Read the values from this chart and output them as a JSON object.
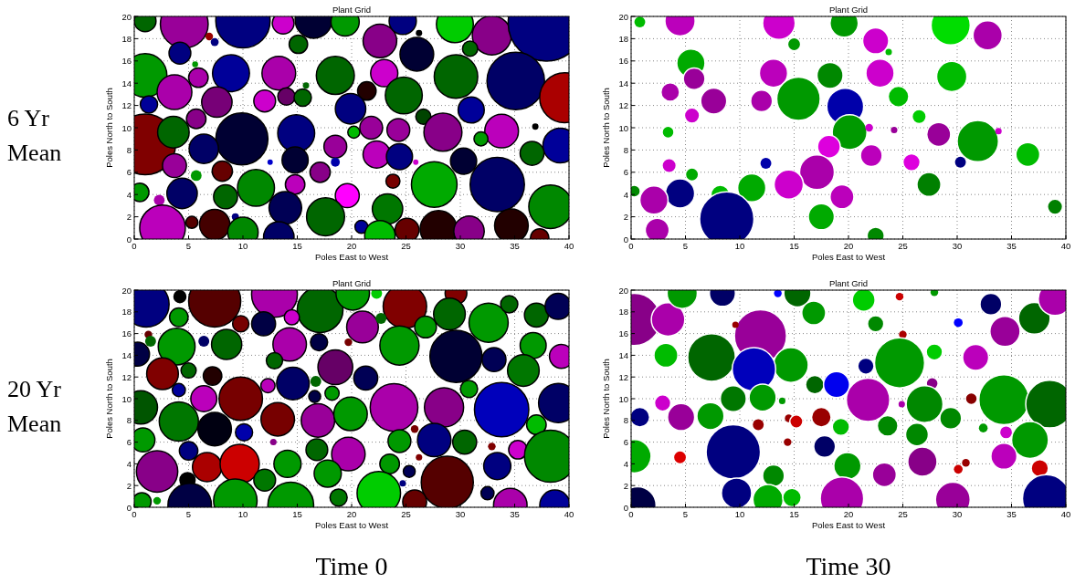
{
  "chart_data": [
    {
      "type": "bubble",
      "title": "Plant Grid",
      "xlabel": "Poles East to West",
      "ylabel": "Poles North to South",
      "xlim": [
        0,
        40
      ],
      "ylim": [
        0,
        20
      ],
      "xticks": [
        0,
        5,
        10,
        15,
        20,
        25,
        30,
        35,
        40
      ],
      "yticks": [
        0,
        2,
        4,
        6,
        8,
        10,
        12,
        14,
        16,
        18,
        20
      ],
      "grid": true,
      "annotations": [
        "6 Yr Mean"
      ],
      "x": [
        1.0,
        4.6,
        10,
        13.7,
        16.5,
        19.4,
        22.6,
        24.7,
        26,
        29.5,
        32.9,
        37.9,
        6.9,
        7.4,
        4.2,
        15.1,
        30.9,
        1.0,
        5.6,
        5.9,
        8.9,
        13.3,
        18.5,
        23,
        29.6,
        35.1,
        39.6,
        3.7,
        7.6,
        1.35,
        12,
        14,
        15.5,
        15.8,
        21.4,
        24.8,
        19.9,
        31,
        5.7,
        26.6,
        1.0,
        3.6,
        9.9,
        14.9,
        20.2,
        21.8,
        24.3,
        28.4,
        33.8,
        39.2,
        31.9,
        36.9,
        6.4,
        3.7,
        18.5,
        22.3,
        24.4,
        14.8,
        30.3,
        36.6,
        12.5,
        18.5,
        25.9,
        17.1,
        8.1,
        5.7,
        14.8,
        23.8,
        27.6,
        33.4,
        38.3,
        0.5,
        4.4,
        8.4,
        11.2,
        2.3,
        19.6,
        13.9,
        17.6,
        23.3,
        2.6,
        5.3,
        7.4,
        9.3,
        10,
        13.3,
        20.9,
        22.6,
        25.1,
        28.0,
        30.8,
        34.7,
        37.3,
        26.2
      ],
      "values": [
        19.6,
        19.3,
        19.6,
        19.4,
        19.7,
        19.5,
        17.8,
        19.6,
        16.6,
        19.3,
        18.3,
        19.4,
        18.2,
        17.7,
        16.7,
        17.5,
        17.1,
        14.7,
        15.7,
        14.5,
        14.9,
        14.9,
        14.7,
        14.9,
        14.6,
        14.2,
        12.7,
        13.2,
        12.3,
        12.1,
        12.4,
        12.8,
        12.7,
        13.8,
        13.3,
        12.9,
        11.7,
        11.6,
        10.8,
        11.0,
        8.5,
        9.6,
        9.0,
        9.5,
        9.6,
        10.0,
        9.8,
        9.6,
        9.7,
        8.4,
        9.0,
        10.1,
        8.1,
        6.6,
        8.3,
        7.6,
        7.4,
        7.1,
        7.0,
        7.7,
        6.9,
        6.9,
        6.9,
        6.0,
        6.1,
        5.7,
        4.9,
        5.2,
        4.9,
        4.9,
        2.9,
        4.2,
        4.1,
        3.8,
        4.6,
        3.5,
        3.9,
        2.8,
        2.0,
        2.7,
        1.0,
        1.5,
        1.3,
        2.0,
        0.6,
        0.2,
        1.1,
        0.3,
        0.8,
        0.9,
        0.7,
        1.2,
        0.1,
        18.5
      ],
      "sizes": [
        0.082,
        0.395,
        0.51,
        0.082,
        0.236,
        0.138,
        0.196,
        0.128,
        0.196,
        0.236,
        0.264,
        1,
        0.01,
        0.011,
        0.082,
        0.059,
        0.04,
        0.327,
        0.006,
        0.066,
        0.236,
        0.196,
        0.25,
        0.128,
        0.327,
        0.573,
        0.432,
        0.209,
        0.16,
        0.052,
        0.082,
        0.052,
        0.052,
        0.007,
        0.059,
        0.236,
        0.16,
        0.118,
        0.066,
        0.04,
        0.64,
        0.172,
        0.47,
        0.236,
        0.025,
        0.09,
        0.09,
        0.25,
        0.196,
        0.209,
        0.034,
        0.007,
        0.149,
        0.099,
        0.09,
        0.128,
        0.118,
        0.118,
        0.118,
        0.099,
        0.005,
        0.014,
        0.005,
        0.071,
        0.071,
        0.02,
        0.066,
        0.034,
        0.36,
        0.51,
        0.327,
        0.059,
        0.16,
        0.099,
        0.236,
        0.02,
        0.099,
        0.184,
        0.25,
        0.16,
        0.36,
        0.025,
        0.16,
        0.009,
        0.16,
        0.16,
        0.029,
        0.16,
        0.099,
        0.236,
        0.16,
        0.196,
        0.059,
        0.007
      ],
      "colors": [
        "#006600",
        "#990099",
        "#000080",
        "#cc00cc",
        "#000033",
        "#009900",
        "#880088",
        "#000080",
        "#000033",
        "#00cc00",
        "#880088",
        "#000080",
        "#990000",
        "#000080",
        "#000080",
        "#006600",
        "#006600",
        "#009900",
        "#009900",
        "#aa00aa",
        "#000099",
        "#aa00aa",
        "#006600",
        "#cc00cc",
        "#006600",
        "#000066",
        "#aa0000",
        "#aa00aa",
        "#770077",
        "#000099",
        "#cc00cc",
        "#660066",
        "#006600",
        "#006600",
        "#220000",
        "#006600",
        "#000080",
        "#000099",
        "#880088",
        "#004400",
        "#800000",
        "#006600",
        "#000033",
        "#000080",
        "#00bb00",
        "#990099",
        "#990099",
        "#880088",
        "#bb00bb",
        "#000099",
        "#009900",
        "#000000",
        "#000066",
        "#990099",
        "#990099",
        "#bb00bb",
        "#000080",
        "#000033",
        "#000033",
        "#006600",
        "#0000cc",
        "#0000aa",
        "#cc00cc",
        "#880088",
        "#660000",
        "#009900",
        "#bb00bb",
        "#770000",
        "#00aa00",
        "#000066",
        "#008800",
        "#009900",
        "#000066",
        "#006600",
        "#008800",
        "#aa00aa",
        "#ff00ff",
        "#000055",
        "#006600",
        "#007700",
        "#bb00bb",
        "#550000",
        "#440000",
        "#000080",
        "#008800",
        "#000066",
        "#000099",
        "#00bb00",
        "#660000",
        "#220000",
        "#880088",
        "#220000",
        "#660000",
        "#000000"
      ]
    },
    {
      "type": "bubble",
      "title": "Plant Grid",
      "xlabel": "Poles East to West",
      "ylabel": "Poles North to South",
      "xlim": [
        0,
        40
      ],
      "ylim": [
        0,
        20
      ],
      "xticks": [
        0,
        5,
        10,
        15,
        20,
        25,
        30,
        35,
        40
      ],
      "yticks": [
        0,
        2,
        4,
        6,
        8,
        10,
        12,
        14,
        16,
        18,
        20
      ],
      "grid": true,
      "x": [
        0.8,
        4.5,
        13.6,
        19.6,
        15,
        22.5,
        23.7,
        29.4,
        32.8,
        5.5,
        5.8,
        13.1,
        18.3,
        22.9,
        29.5,
        3.6,
        7.6,
        12,
        15.4,
        19.7,
        24.6,
        5.6,
        26.5,
        3.4,
        20.1,
        21.9,
        24.2,
        28.3,
        31.9,
        33.8,
        36.5,
        18.2,
        22.1,
        25.8,
        30.3,
        12.4,
        3.5,
        5.6,
        17.1,
        14.5,
        27.4,
        0.3,
        4.5,
        2.1,
        8.2,
        11.1,
        8.8,
        19.4,
        17.5,
        39,
        2.4,
        22.5
      ],
      "values": [
        19.5,
        19.6,
        19.4,
        19.4,
        17.5,
        17.8,
        16.8,
        19.2,
        18.3,
        15.8,
        14.4,
        14.9,
        14.7,
        14.9,
        14.6,
        13.2,
        12.4,
        12.4,
        12.6,
        11.9,
        12.8,
        11.1,
        11.0,
        9.6,
        9.6,
        10.0,
        9.8,
        9.4,
        8.8,
        9.7,
        7.6,
        8.3,
        7.5,
        6.9,
        6.9,
        6.8,
        6.6,
        5.8,
        6.0,
        4.9,
        4.9,
        4.3,
        4.1,
        3.5,
        4.0,
        4.6,
        1.8,
        3.8,
        2.0,
        2.9,
        0.8,
        0.3
      ],
      "sizes": [
        0.04,
        0.31,
        0.36,
        0.27,
        0.058,
        0.23,
        0.014,
        0.52,
        0.29,
        0.27,
        0.16,
        0.27,
        0.23,
        0.27,
        0.31,
        0.116,
        0.23,
        0.16,
        0.64,
        0.46,
        0.144,
        0.078,
        0.068,
        0.048,
        0.41,
        0.02,
        0.014,
        0.194,
        0.58,
        0.014,
        0.194,
        0.176,
        0.16,
        0.1,
        0.04,
        0.04,
        0.068,
        0.058,
        0.41,
        0.29,
        0.194,
        0.048,
        0.29,
        0.27,
        0.116,
        0.27,
        1,
        0.194,
        0.23,
        0.078,
        0.194,
        0.1
      ],
      "colors": [
        "#00bb00",
        "#bb00bb",
        "#cc00cc",
        "#009900",
        "#009900",
        "#cc00cc",
        "#00bb00",
        "#00dd00",
        "#aa00aa",
        "#00aa00",
        "#990099",
        "#bb00bb",
        "#008800",
        "#cc00cc",
        "#00bb00",
        "#aa00aa",
        "#990099",
        "#aa00aa",
        "#009900",
        "#0000aa",
        "#00bb00",
        "#cc00cc",
        "#00cc00",
        "#00bb00",
        "#009900",
        "#cc00cc",
        "#990099",
        "#990099",
        "#009900",
        "#cc00cc",
        "#00bb00",
        "#dd00dd",
        "#bb00bb",
        "#dd00dd",
        "#000080",
        "#0000aa",
        "#cc00cc",
        "#00aa00",
        "#aa00aa",
        "#cc00cc",
        "#008000",
        "#008800",
        "#000080",
        "#aa00aa",
        "#00bb00",
        "#00aa00",
        "#000080",
        "#bb00bb",
        "#00aa00",
        "#008000",
        "#aa00aa",
        "#008800"
      ]
    },
    {
      "type": "bubble",
      "title": "Plant Grid",
      "xlabel": "Poles East to West",
      "ylabel": "Poles North to South",
      "xlim": [
        0,
        40
      ],
      "ylim": [
        0,
        20
      ],
      "xticks": [
        0,
        5,
        10,
        15,
        20,
        25,
        30,
        35,
        40
      ],
      "yticks": [
        0,
        2,
        4,
        6,
        8,
        10,
        12,
        14,
        16,
        18,
        20
      ],
      "grid": true,
      "annotations": [
        "20 Yr Mean",
        "Time 0"
      ],
      "x": [
        1.1,
        4.2,
        7.4,
        12.9,
        17.1,
        20.1,
        22.3,
        24.9,
        29.6,
        29,
        32.6,
        34.5,
        37.0,
        39.0,
        4.1,
        9.8,
        11.9,
        14.5,
        21.0,
        22.7,
        26.8,
        1.3,
        1.5,
        3.9,
        6.4,
        8.5,
        14.3,
        17.0,
        19.7,
        24.4,
        29.6,
        33.1,
        36.7,
        39.3,
        0.3,
        2.6,
        5.0,
        7.2,
        12.9,
        18.5,
        35.8,
        14.6,
        21.3,
        16.7,
        12.3,
        4.1,
        30.8,
        6.4,
        9.8,
        0.6,
        16.6,
        18.2,
        23.9,
        28.5,
        33.8,
        39.0,
        4.1,
        7.4,
        10.1,
        13.2,
        16.9,
        19.9,
        25.8,
        37.0,
        0.8,
        24.4,
        27.6,
        30.4,
        12.8,
        5.0,
        16.8,
        19.7,
        26.2,
        32.9,
        35.3,
        38.3,
        2.1,
        6.7,
        9.7,
        4.9,
        14.1,
        17.8,
        23.5,
        25.3,
        12.0,
        28.8,
        33.4,
        22.5,
        32.5,
        0.7,
        2.1,
        5.1,
        9.3,
        14.4,
        18.8,
        25.8,
        34.6,
        38.7,
        24.7
      ],
      "values": [
        18.7,
        19.4,
        19.0,
        19.6,
        18.2,
        19.7,
        19.7,
        18.5,
        19.7,
        17.8,
        17.0,
        18.7,
        17.7,
        18.5,
        17.5,
        16.9,
        16.9,
        17.5,
        16.6,
        17.4,
        16.6,
        15.9,
        15.3,
        14.8,
        15.3,
        15.0,
        15.0,
        15.2,
        15.2,
        14.9,
        13.9,
        13.6,
        14.9,
        13.9,
        14.1,
        12.3,
        12.6,
        12.1,
        13.5,
        12.9,
        12.6,
        11.4,
        11.9,
        11.6,
        11.2,
        10.8,
        10.9,
        10.0,
        10.0,
        9.2,
        10.2,
        10.5,
        9.2,
        9.2,
        9.0,
        9.6,
        7.9,
        7.2,
        6.9,
        8.1,
        8.0,
        8.6,
        7.2,
        7.6,
        6.2,
        6.1,
        6.2,
        6.0,
        6.0,
        5.2,
        5.3,
        4.9,
        4.6,
        5.6,
        5.3,
        4.7,
        3.3,
        3.7,
        4.0,
        2.5,
        4.0,
        3.1,
        4.0,
        3.3,
        2.5,
        2.3,
        3.8,
        1.3,
        1.3,
        0.5,
        0.6,
        0.2,
        0.6,
        0.2,
        0.9,
        0.5,
        0.2,
        0.2,
        2.2
      ],
      "sizes": [
        0.71,
        0.048,
        0.92,
        0.71,
        0.71,
        0.38,
        0.04,
        0.64,
        0.16,
        0.34,
        0.52,
        0.1,
        0.194,
        0.23,
        0.116,
        0.09,
        0.194,
        0.078,
        0.34,
        0.04,
        0.16,
        0.02,
        0.04,
        0.46,
        0.04,
        0.31,
        0.38,
        0.1,
        0.02,
        0.52,
        0.92,
        0.194,
        0.23,
        0.194,
        0.194,
        0.34,
        0.078,
        0.116,
        0.09,
        0.41,
        0.34,
        0.36,
        0.194,
        0.04,
        0.068,
        0.058,
        0.1,
        0.23,
        0.64,
        0.38,
        0.048,
        0.068,
        0.77,
        0.52,
        1,
        0.52,
        0.52,
        0.38,
        0.1,
        0.38,
        0.38,
        0.38,
        0.02,
        0.13,
        0.194,
        0.176,
        0.38,
        0.194,
        0.014,
        0.116,
        0.16,
        0.38,
        0.014,
        0.02,
        0.116,
        0.92,
        0.58,
        0.29,
        0.52,
        0.078,
        0.25,
        0.25,
        0.13,
        0.048,
        0.16,
        0.92,
        0.25,
        0.64,
        0.058,
        0.116,
        0.02,
        0.64,
        0.64,
        0.71,
        0.1,
        0.194,
        0.38,
        0.31,
        0.014
      ],
      "colors": [
        "#000080",
        "#000000",
        "#550000",
        "#aa00aa",
        "#006600",
        "#009900",
        "#00cc00",
        "#800000",
        "#800000",
        "#006600",
        "#009900",
        "#006600",
        "#006600",
        "#000055",
        "#009900",
        "#770000",
        "#000044",
        "#cc00cc",
        "#990099",
        "#006600",
        "#009900",
        "#660000",
        "#006600",
        "#009900",
        "#000066",
        "#006600",
        "#aa00aa",
        "#000044",
        "#770000",
        "#009900",
        "#000033",
        "#000055",
        "#009900",
        "#bb00bb",
        "#000044",
        "#800000",
        "#006600",
        "#220000",
        "#006600",
        "#660066",
        "#007700",
        "#000066",
        "#000055",
        "#006600",
        "#bb00bb",
        "#000099",
        "#009900",
        "#bb00bb",
        "#770000",
        "#005500",
        "#000044",
        "#009900",
        "#aa00aa",
        "#880088",
        "#0000bb",
        "#000066",
        "#007700",
        "#000011",
        "#0000aa",
        "#770000",
        "#990099",
        "#009900",
        "#770000",
        "#00bb00",
        "#009900",
        "#009900",
        "#000080",
        "#006600",
        "#880088",
        "#000080",
        "#006600",
        "#aa00aa",
        "#800000",
        "#800000",
        "#cc00cc",
        "#008800",
        "#880088",
        "#aa0000",
        "#cc0000",
        "#000000",
        "#009900",
        "#009900",
        "#009900",
        "#000055",
        "#007700",
        "#550000",
        "#000080",
        "#00cc00",
        "#000055",
        "#009900",
        "#009900",
        "#000044",
        "#009900",
        "#009900",
        "#007700",
        "#660000",
        "#aa00aa",
        "#000099",
        "#000080"
      ]
    },
    {
      "type": "bubble",
      "title": "Plant Grid",
      "xlabel": "Poles East to West",
      "ylabel": "Poles North to South",
      "xlim": [
        0,
        40
      ],
      "ylim": [
        0,
        20
      ],
      "xticks": [
        0,
        5,
        10,
        15,
        20,
        25,
        30,
        35,
        40
      ],
      "yticks": [
        0,
        2,
        4,
        6,
        8,
        10,
        12,
        14,
        16,
        18,
        20
      ],
      "grid": true,
      "annotations": [
        "Time 30"
      ],
      "x": [
        0.3,
        3.4,
        4.7,
        8.4,
        13.5,
        15.3,
        16.8,
        11.9,
        9.6,
        21.4,
        24.7,
        27.9,
        33.1,
        37.1,
        39.0,
        22.5,
        30.1,
        34.4,
        25.0,
        7.4,
        3.2,
        14.7,
        11.3,
        21.6,
        24.7,
        27.9,
        31.7,
        16.9,
        18.9,
        21.8,
        27.7,
        34.3,
        38.5,
        9.4,
        12.1,
        2.9,
        13.9,
        31.3,
        0.8,
        4.6,
        7.3,
        11.7,
        14.5,
        15.2,
        17.5,
        19.3,
        23.6,
        27.0,
        26.3,
        29.4,
        24.9,
        32.4,
        34.5,
        36.7,
        0.3,
        9.4,
        17.8,
        14.4,
        4.5,
        26.8,
        34.3,
        19.9,
        23.3,
        30.1,
        30.8,
        37.6,
        13.1,
        9.7,
        12.6,
        14.8,
        19.4,
        29.6,
        38.2,
        0.6
      ],
      "values": [
        17.3,
        17.3,
        19.7,
        19.7,
        19.7,
        19.7,
        17.9,
        15.8,
        16.8,
        19.1,
        19.4,
        19.8,
        18.7,
        17.4,
        19.2,
        16.9,
        17.0,
        16.2,
        15.9,
        13.8,
        14.0,
        13.1,
        12.7,
        13.0,
        13.3,
        14.3,
        13.8,
        11.3,
        11.3,
        9.9,
        11.4,
        9.9,
        9.5,
        10.0,
        10.1,
        9.6,
        9.8,
        10.0,
        8.3,
        8.3,
        8.4,
        7.6,
        8.2,
        7.9,
        8.3,
        7.4,
        7.5,
        9.5,
        6.7,
        8.2,
        9.5,
        7.3,
        6.9,
        6.2,
        4.7,
        5.1,
        5.6,
        6.0,
        4.6,
        4.2,
        4.7,
        3.8,
        3.0,
        3.5,
        4.1,
        3.6,
        2.9,
        1.3,
        0.7,
        0.9,
        0.8,
        0.7,
        0.8,
        0.2
      ],
      "sizes": [
        0.92,
        0.38,
        0.31,
        0.23,
        0.02,
        0.25,
        0.194,
        0.92,
        0.014,
        0.176,
        0.02,
        0.02,
        0.16,
        0.34,
        0.38,
        0.09,
        0.026,
        0.31,
        0.02,
        0.77,
        0.194,
        0.41,
        0.64,
        0.09,
        0.85,
        0.09,
        0.23,
        0.116,
        0.23,
        0.64,
        0.048,
        0.85,
        0.77,
        0.23,
        0.25,
        0.09,
        0.014,
        0.048,
        0.13,
        0.25,
        0.25,
        0.04,
        0.02,
        0.058,
        0.13,
        0.1,
        0.144,
        0.46,
        0.176,
        0.16,
        0.014,
        0.026,
        0.058,
        0.46,
        0.38,
        1,
        0.16,
        0.02,
        0.058,
        0.29,
        0.23,
        0.25,
        0.194,
        0.026,
        0.02,
        0.1,
        0.16,
        0.31,
        0.31,
        0.116,
        0.64,
        0.41,
        0.77,
        0.46
      ],
      "colors": [
        "#880088",
        "#aa00aa",
        "#009900",
        "#000066",
        "#0000ff",
        "#006600",
        "#009900",
        "#990099",
        "#990000",
        "#00cc00",
        "#cc0000",
        "#009900",
        "#000066",
        "#006600",
        "#aa00aa",
        "#008800",
        "#0000ff",
        "#990099",
        "#aa0000",
        "#006600",
        "#00bb00",
        "#009900",
        "#0000bb",
        "#000080",
        "#009900",
        "#00cc00",
        "#bb00bb",
        "#006600",
        "#0000ee",
        "#aa00aa",
        "#880088",
        "#009900",
        "#006600",
        "#007700",
        "#009900",
        "#cc00cc",
        "#009900",
        "#880000",
        "#000080",
        "#990099",
        "#009900",
        "#990000",
        "#990000",
        "#cc0000",
        "#990000",
        "#00bb00",
        "#008800",
        "#008800",
        "#008800",
        "#008800",
        "#aa00aa",
        "#009900",
        "#cc00cc",
        "#009900",
        "#00aa00",
        "#000080",
        "#000066",
        "#990000",
        "#dd0000",
        "#880088",
        "#bb00bb",
        "#009900",
        "#990099",
        "#cc0000",
        "#990000",
        "#cc0000",
        "#008800",
        "#000080",
        "#00aa00",
        "#00bb00",
        "#aa00aa",
        "#990099",
        "#000080",
        "#000044"
      ]
    }
  ]
}
